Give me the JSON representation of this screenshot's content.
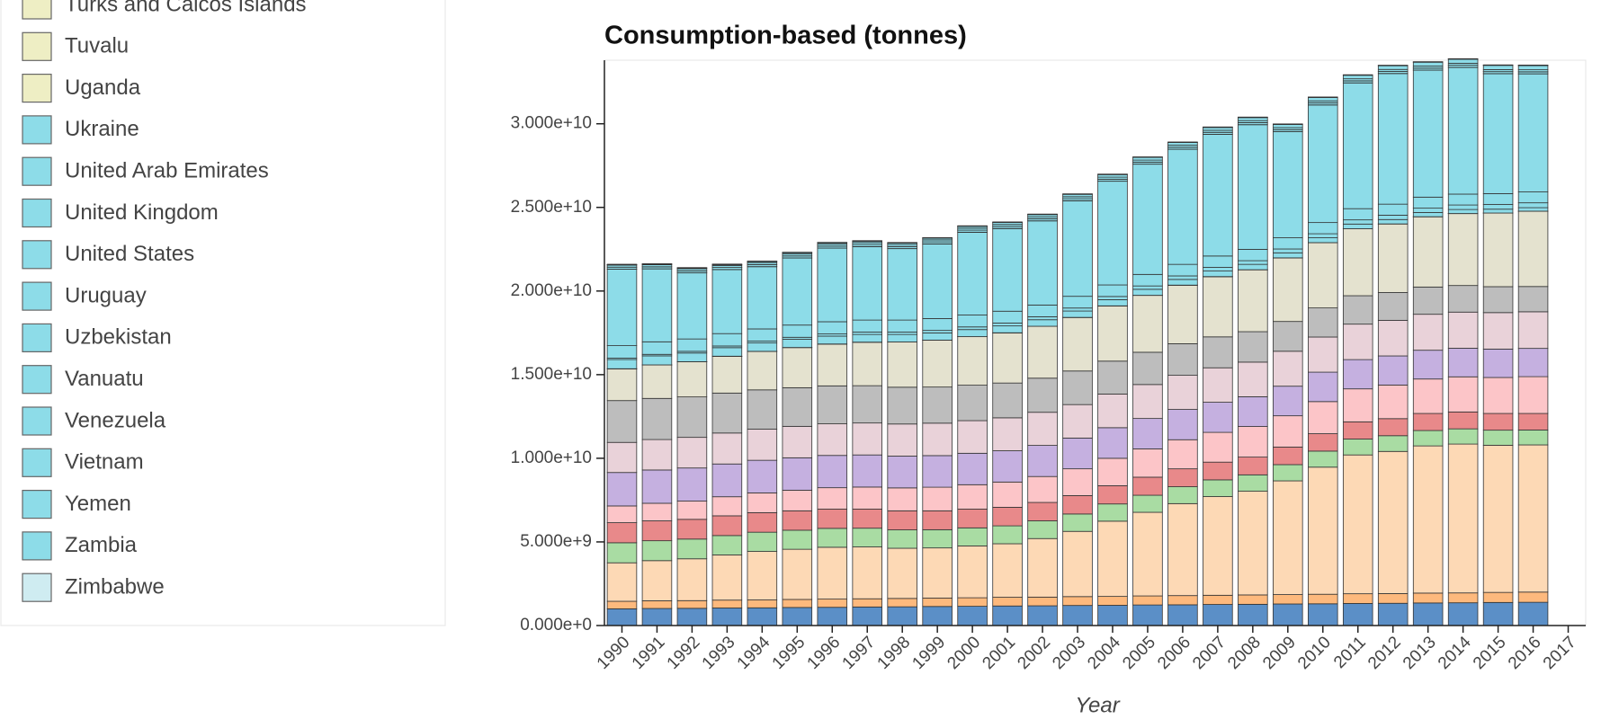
{
  "chart_data": {
    "type": "stacked_bar",
    "title": "Consumption-based (tonnes)",
    "x_label": "Year",
    "categories": [
      "1990",
      "1991",
      "1992",
      "1993",
      "1994",
      "1995",
      "1996",
      "1997",
      "1998",
      "1999",
      "2000",
      "2001",
      "2002",
      "2003",
      "2004",
      "2005",
      "2006",
      "2007",
      "2008",
      "2009",
      "2010",
      "2011",
      "2012",
      "2013",
      "2014",
      "2015",
      "2016",
      "2017"
    ],
    "ylim": [
      0,
      33800000000
    ],
    "yticks": [
      {
        "value": 0,
        "label": "0.000e+0"
      },
      {
        "value": 5000000000,
        "label": "5.000e+9"
      },
      {
        "value": 10000000000,
        "label": "1.000e+10"
      },
      {
        "value": 15000000000,
        "label": "1.500e+10"
      },
      {
        "value": 20000000000,
        "label": "2.000e+10"
      },
      {
        "value": 25000000000,
        "label": "2.500e+10"
      },
      {
        "value": 30000000000,
        "label": "3.000e+10"
      }
    ],
    "series": [
      {
        "color": "#5b8fc7",
        "values": [
          1000000000.0,
          1020000000.0,
          1030000000.0,
          1050000000.0,
          1060000000.0,
          1080000000.0,
          1090000000.0,
          1110000000.0,
          1120000000.0,
          1140000000.0,
          1150000000.0,
          1170000000.0,
          1180000000.0,
          1200000000.0,
          1210000000.0,
          1230000000.0,
          1240000000.0,
          1260000000.0,
          1270000000.0,
          1290000000.0,
          1300000000.0,
          1320000000.0,
          1330000000.0,
          1350000000.0,
          1360000000.0,
          1380000000.0,
          1390000000.0,
          null
        ]
      },
      {
        "color": "#fdb97d",
        "values": [
          450000000.0,
          460000000.0,
          460000000.0,
          470000000.0,
          470000000.0,
          480000000.0,
          490000000.0,
          490000000.0,
          500000000.0,
          500000000.0,
          510000000.0,
          520000000.0,
          520000000.0,
          530000000.0,
          530000000.0,
          540000000.0,
          550000000.0,
          550000000.0,
          560000000.0,
          560000000.0,
          570000000.0,
          580000000.0,
          580000000.0,
          590000000.0,
          590000000.0,
          600000000.0,
          610000000.0,
          null
        ]
      },
      {
        "color": "#fdd9b5",
        "values": [
          2300000000.0,
          2400000000.0,
          2500000000.0,
          2700000000.0,
          2900000000.0,
          3000000000.0,
          3100000000.0,
          3100000000.0,
          3000000000.0,
          3000000000.0,
          3100000000.0,
          3200000000.0,
          3500000000.0,
          3900000000.0,
          4500000000.0,
          5000000000.0,
          5500000000.0,
          5900000000.0,
          6200000000.0,
          6800000000.0,
          7600000000.0,
          8300000000.0,
          8500000000.0,
          8800000000.0,
          8900000000.0,
          8800000000.0,
          8800000000.0,
          null
        ]
      },
      {
        "color": "#a9dca3",
        "values": [
          1200000000.0,
          1190000000.0,
          1180000000.0,
          1160000000.0,
          1150000000.0,
          1140000000.0,
          1130000000.0,
          1120000000.0,
          1100000000.0,
          1090000000.0,
          1080000000.0,
          1070000000.0,
          1060000000.0,
          1040000000.0,
          1030000000.0,
          1020000000.0,
          1010000000.0,
          1000000000.0,
          980000000.0,
          970000000.0,
          960000000.0,
          950000000.0,
          940000000.0,
          920000000.0,
          910000000.0,
          900000000.0,
          890000000.0,
          null
        ]
      },
      {
        "color": "#e8898a",
        "values": [
          1200000000.0,
          1190000000.0,
          1180000000.0,
          1180000000.0,
          1170000000.0,
          1160000000.0,
          1150000000.0,
          1140000000.0,
          1140000000.0,
          1130000000.0,
          1120000000.0,
          1110000000.0,
          1100000000.0,
          1100000000.0,
          1090000000.0,
          1080000000.0,
          1070000000.0,
          1060000000.0,
          1060000000.0,
          1050000000.0,
          1040000000.0,
          1030000000.0,
          1020000000.0,
          1020000000.0,
          1010000000.0,
          1000000000.0,
          990000000.0,
          null
        ]
      },
      {
        "color": "#fcc5c8",
        "values": [
          1000000000.0,
          1050000000.0,
          1090000000.0,
          1140000000.0,
          1180000000.0,
          1230000000.0,
          1280000000.0,
          1320000000.0,
          1370000000.0,
          1410000000.0,
          1460000000.0,
          1510000000.0,
          1550000000.0,
          1600000000.0,
          1640000000.0,
          1690000000.0,
          1740000000.0,
          1780000000.0,
          1830000000.0,
          1870000000.0,
          1920000000.0,
          1970000000.0,
          2010000000.0,
          2060000000.0,
          2100000000.0,
          2150000000.0,
          2200000000.0,
          null
        ]
      },
      {
        "color": "#c5b0e0",
        "values": [
          2000000000.0,
          1990000000.0,
          1980000000.0,
          1960000000.0,
          1950000000.0,
          1940000000.0,
          1930000000.0,
          1920000000.0,
          1900000000.0,
          1890000000.0,
          1880000000.0,
          1870000000.0,
          1860000000.0,
          1840000000.0,
          1830000000.0,
          1820000000.0,
          1810000000.0,
          1800000000.0,
          1780000000.0,
          1770000000.0,
          1760000000.0,
          1750000000.0,
          1740000000.0,
          1720000000.0,
          1710000000.0,
          1700000000.0,
          1690000000.0,
          null
        ]
      },
      {
        "color": "#e9d2d9",
        "values": [
          1800000000.0,
          1820000000.0,
          1830000000.0,
          1850000000.0,
          1860000000.0,
          1880000000.0,
          1890000000.0,
          1910000000.0,
          1920000000.0,
          1940000000.0,
          1950000000.0,
          1970000000.0,
          1980000000.0,
          2000000000.0,
          2010000000.0,
          2030000000.0,
          2040000000.0,
          2060000000.0,
          2070000000.0,
          2090000000.0,
          2100000000.0,
          2120000000.0,
          2130000000.0,
          2150000000.0,
          2160000000.0,
          2180000000.0,
          2190000000.0,
          null
        ]
      },
      {
        "color": "#bdbdbd",
        "values": [
          2500000000.0,
          2460000000.0,
          2420000000.0,
          2390000000.0,
          2350000000.0,
          2310000000.0,
          2270000000.0,
          2230000000.0,
          2200000000.0,
          2160000000.0,
          2120000000.0,
          2080000000.0,
          2040000000.0,
          2010000000.0,
          1970000000.0,
          1930000000.0,
          1890000000.0,
          1850000000.0,
          1820000000.0,
          1780000000.0,
          1740000000.0,
          1700000000.0,
          1660000000.0,
          1630000000.0,
          1590000000.0,
          1550000000.0,
          1510000000.0,
          null
        ]
      },
      {
        "color": "#e4e2cf",
        "values": [
          1900000000.0,
          2000000000.0,
          2100000000.0,
          2200000000.0,
          2300000000.0,
          2400000000.0,
          2500000000.0,
          2600000000.0,
          2700000000.0,
          2800000000.0,
          2900000000.0,
          3000000000.0,
          3100000000.0,
          3200000000.0,
          3300000000.0,
          3400000000.0,
          3500000000.0,
          3600000000.0,
          3700000000.0,
          3800000000.0,
          3900000000.0,
          4000000000.0,
          4100000000.0,
          4200000000.0,
          4300000000.0,
          4400000000.0,
          4500000000.0,
          null
        ]
      },
      {
        "name": "Turks and Caicos Islands",
        "color": "#eeeec4",
        "values": [
          1000000.0,
          1000000.0,
          1000000.0,
          1000000.0,
          1000000.0,
          1000000.0,
          1000000.0,
          1000000.0,
          1000000.0,
          1000000.0,
          1000000.0,
          1000000.0,
          1000000.0,
          1000000.0,
          1000000.0,
          1000000.0,
          1000000.0,
          1000000.0,
          1000000.0,
          1000000.0,
          1000000.0,
          1000000.0,
          1000000.0,
          1000000.0,
          1000000.0,
          1000000.0,
          1000000.0,
          null
        ]
      },
      {
        "name": "Tuvalu",
        "color": "#eeeec4",
        "values": [
          100000.0,
          100000.0,
          100000.0,
          100000.0,
          100000.0,
          100000.0,
          100000.0,
          100000.0,
          100000.0,
          100000.0,
          100000.0,
          100000.0,
          100000.0,
          100000.0,
          100000.0,
          100000.0,
          100000.0,
          100000.0,
          100000.0,
          100000.0,
          100000.0,
          100000.0,
          100000.0,
          100000.0,
          100000.0,
          100000.0,
          100000.0,
          null
        ]
      },
      {
        "name": "Uganda",
        "color": "#eeeec4",
        "values": [
          3000000.0,
          3000000.0,
          3000000.0,
          3000000.0,
          3000000.0,
          3000000.0,
          3000000.0,
          3000000.0,
          3000000.0,
          3000000.0,
          3000000.0,
          3000000.0,
          3000000.0,
          3000000.0,
          3000000.0,
          3000000.0,
          3000000.0,
          3000000.0,
          3000000.0,
          3000000.0,
          3000000.0,
          3000000.0,
          3000000.0,
          3000000.0,
          3000000.0,
          3000000.0,
          3000000.0,
          null
        ]
      },
      {
        "name": "Ukraine",
        "color": "#8ddce8",
        "values": [
          550000000.0,
          540000000.0,
          520000000.0,
          510000000.0,
          500000000.0,
          490000000.0,
          470000000.0,
          460000000.0,
          450000000.0,
          430000000.0,
          420000000.0,
          410000000.0,
          390000000.0,
          380000000.0,
          370000000.0,
          360000000.0,
          340000000.0,
          330000000.0,
          320000000.0,
          300000000.0,
          290000000.0,
          280000000.0,
          260000000.0,
          250000000.0,
          240000000.0,
          230000000.0,
          210000000.0,
          null
        ]
      },
      {
        "name": "United Arab Emirates",
        "color": "#8ddce8",
        "values": [
          80000000.0,
          90000000.0,
          100000000.0,
          100000000.0,
          110000000.0,
          120000000.0,
          130000000.0,
          140000000.0,
          140000000.0,
          150000000.0,
          160000000.0,
          170000000.0,
          180000000.0,
          180000000.0,
          190000000.0,
          200000000.0,
          210000000.0,
          220000000.0,
          220000000.0,
          230000000.0,
          240000000.0,
          250000000.0,
          260000000.0,
          260000000.0,
          270000000.0,
          280000000.0,
          290000000.0,
          null
        ]
      },
      {
        "name": "United Kingdom",
        "color": "#8ddce8",
        "values": [
          750000000.0,
          750000000.0,
          740000000.0,
          740000000.0,
          730000000.0,
          730000000.0,
          730000000.0,
          720000000.0,
          720000000.0,
          710000000.0,
          710000000.0,
          710000000.0,
          700000000.0,
          700000000.0,
          690000000.0,
          690000000.0,
          690000000.0,
          680000000.0,
          680000000.0,
          670000000.0,
          670000000.0,
          670000000.0,
          660000000.0,
          660000000.0,
          650000000.0,
          650000000.0,
          650000000.0,
          null
        ]
      },
      {
        "name": "United States",
        "color": "#8ddce8",
        "values": [
          4570000000.0,
          4360000000.0,
          3950000000.0,
          3830000000.0,
          3720000000.0,
          4010000000.0,
          4400000000.0,
          4390000000.0,
          4270000000.0,
          4460000000.0,
          4950000000.0,
          4940000000.0,
          5030000000.0,
          5710000000.0,
          6200000000.0,
          6590000000.0,
          6880000000.0,
          7270000000.0,
          7450000000.0,
          6340000000.0,
          7030000000.0,
          7520000000.0,
          7810000000.0,
          7590000000.0,
          7580000000.0,
          7170000000.0,
          7060000000.0,
          null
        ]
      },
      {
        "name": "Uruguay",
        "color": "#8ddce8",
        "values": [
          5000000.0,
          5000000.0,
          5000000.0,
          5000000.0,
          5000000.0,
          5000000.0,
          5000000.0,
          5000000.0,
          5000000.0,
          5000000.0,
          5000000.0,
          5000000.0,
          5000000.0,
          5000000.0,
          5000000.0,
          5000000.0,
          5000000.0,
          5000000.0,
          5000000.0,
          5000000.0,
          5000000.0,
          5000000.0,
          5000000.0,
          5000000.0,
          5000000.0,
          5000000.0,
          5000000.0,
          null
        ]
      },
      {
        "name": "Uzbekistan",
        "color": "#8ddce8",
        "values": [
          120000000.0,
          120000000.0,
          120000000.0,
          120000000.0,
          120000000.0,
          120000000.0,
          120000000.0,
          120000000.0,
          120000000.0,
          120000000.0,
          120000000.0,
          120000000.0,
          120000000.0,
          120000000.0,
          120000000.0,
          120000000.0,
          120000000.0,
          120000000.0,
          120000000.0,
          120000000.0,
          120000000.0,
          120000000.0,
          120000000.0,
          120000000.0,
          120000000.0,
          120000000.0,
          120000000.0,
          null
        ]
      },
      {
        "name": "Vanuatu",
        "color": "#8ddce8",
        "values": [
          200000.0,
          200000.0,
          200000.0,
          200000.0,
          200000.0,
          200000.0,
          200000.0,
          200000.0,
          200000.0,
          200000.0,
          200000.0,
          200000.0,
          200000.0,
          200000.0,
          200000.0,
          200000.0,
          200000.0,
          200000.0,
          200000.0,
          200000.0,
          200000.0,
          200000.0,
          200000.0,
          200000.0,
          200000.0,
          200000.0,
          200000.0,
          null
        ]
      },
      {
        "name": "Venezuela",
        "color": "#8ddce8",
        "values": [
          120000000.0,
          120000000.0,
          120000000.0,
          120000000.0,
          120000000.0,
          120000000.0,
          120000000.0,
          120000000.0,
          120000000.0,
          120000000.0,
          120000000.0,
          120000000.0,
          120000000.0,
          120000000.0,
          120000000.0,
          120000000.0,
          120000000.0,
          120000000.0,
          120000000.0,
          120000000.0,
          120000000.0,
          120000000.0,
          120000000.0,
          120000000.0,
          120000000.0,
          120000000.0,
          120000000.0,
          null
        ]
      },
      {
        "name": "Vietnam",
        "color": "#8ddce8",
        "values": [
          20000000.0,
          30000000.0,
          40000000.0,
          50000000.0,
          60000000.0,
          70000000.0,
          70000000.0,
          80000000.0,
          90000000.0,
          100000000.0,
          110000000.0,
          120000000.0,
          130000000.0,
          140000000.0,
          150000000.0,
          160000000.0,
          160000000.0,
          170000000.0,
          180000000.0,
          190000000.0,
          200000000.0,
          210000000.0,
          220000000.0,
          230000000.0,
          240000000.0,
          250000000.0,
          250000000.0,
          null
        ]
      },
      {
        "name": "Yemen",
        "color": "#8ddce8",
        "values": [
          10000000.0,
          10000000.0,
          10000000.0,
          10000000.0,
          10000000.0,
          10000000.0,
          10000000.0,
          10000000.0,
          10000000.0,
          10000000.0,
          10000000.0,
          10000000.0,
          10000000.0,
          10000000.0,
          10000000.0,
          10000000.0,
          10000000.0,
          10000000.0,
          10000000.0,
          10000000.0,
          10000000.0,
          10000000.0,
          10000000.0,
          10000000.0,
          10000000.0,
          10000000.0,
          10000000.0,
          null
        ]
      },
      {
        "name": "Zambia",
        "color": "#8ddce8",
        "values": [
          3000000.0,
          3000000.0,
          3000000.0,
          3000000.0,
          3000000.0,
          3000000.0,
          3000000.0,
          3000000.0,
          3000000.0,
          3000000.0,
          3000000.0,
          3000000.0,
          3000000.0,
          3000000.0,
          3000000.0,
          3000000.0,
          3000000.0,
          3000000.0,
          3000000.0,
          3000000.0,
          3000000.0,
          3000000.0,
          3000000.0,
          3000000.0,
          3000000.0,
          3000000.0,
          3000000.0,
          null
        ]
      },
      {
        "name": "Zimbabwe",
        "color": "#cfecf1",
        "values": [
          20000000.0,
          20000000.0,
          20000000.0,
          20000000.0,
          20000000.0,
          20000000.0,
          20000000.0,
          20000000.0,
          20000000.0,
          20000000.0,
          20000000.0,
          20000000.0,
          20000000.0,
          20000000.0,
          20000000.0,
          20000000.0,
          20000000.0,
          20000000.0,
          20000000.0,
          20000000.0,
          20000000.0,
          20000000.0,
          20000000.0,
          20000000.0,
          20000000.0,
          20000000.0,
          20000000.0,
          null
        ]
      }
    ]
  }
}
